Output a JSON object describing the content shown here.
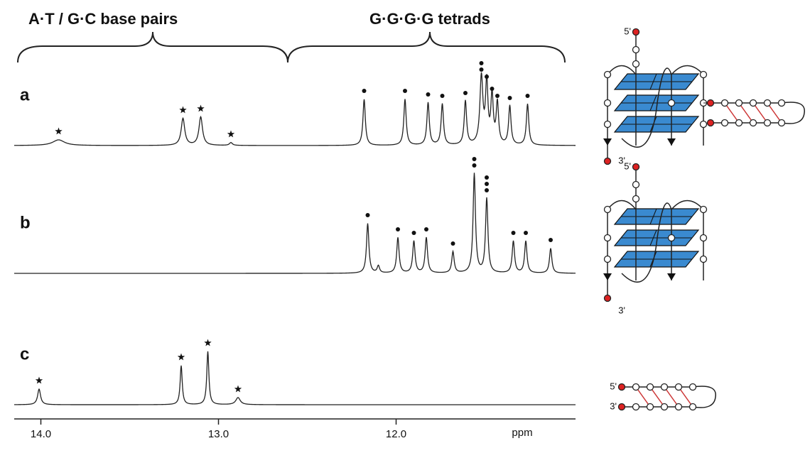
{
  "chart_data": {
    "type": "nmr",
    "headers": [
      "A·T / G·C  base pairs",
      "G·G·G·G  tetrads"
    ],
    "xlabel": "ppm",
    "xlim": [
      14.15,
      10.99
    ],
    "xticks": [
      {
        "value": 14,
        "label": "14.0"
      },
      {
        "value": 13,
        "label": "13.0"
      },
      {
        "value": 12,
        "label": "12.0"
      }
    ],
    "spectra": [
      {
        "name": "a",
        "positions": [
          13.9,
          13.2,
          13.1,
          12.93,
          12.18,
          11.95,
          11.82,
          11.74,
          11.61,
          11.52,
          11.49,
          11.46,
          11.43,
          11.36,
          11.26
        ],
        "heights": [
          8,
          38,
          40,
          4,
          65,
          65,
          60,
          58,
          62,
          95,
          85,
          68,
          58,
          55,
          58
        ],
        "widths": [
          0.04,
          0.012,
          0.012,
          0.01,
          0.008,
          0.008,
          0.008,
          0.008,
          0.008,
          0.01,
          0.008,
          0.008,
          0.008,
          0.008,
          0.008
        ],
        "markers": [
          [
            "star"
          ],
          [
            "star"
          ],
          [
            "star"
          ],
          [
            "star"
          ],
          [
            "dot"
          ],
          [
            "dot"
          ],
          [
            "dot"
          ],
          [
            "dot"
          ],
          [
            "dot"
          ],
          [
            "dot",
            "dot"
          ],
          [
            "dot"
          ],
          [
            "dot"
          ],
          [
            "dot"
          ],
          [
            "dot"
          ],
          [
            "dot"
          ]
        ]
      },
      {
        "name": "b",
        "positions": [
          12.16,
          12.1,
          11.99,
          11.9,
          11.83,
          11.68,
          11.56,
          11.49,
          11.34,
          11.27,
          11.13
        ],
        "heights": [
          70,
          10,
          50,
          45,
          50,
          30,
          140,
          105,
          45,
          45,
          35
        ],
        "widths": [
          0.008,
          0.008,
          0.008,
          0.008,
          0.008,
          0.008,
          0.008,
          0.008,
          0.008,
          0.008,
          0.008
        ],
        "markers": [
          [
            "dot"
          ],
          [],
          [
            "dot"
          ],
          [
            "dot"
          ],
          [
            "dot"
          ],
          [
            "dot"
          ],
          [
            "dot",
            "dot"
          ],
          [
            "dot",
            "dot",
            "dot"
          ],
          [
            "dot"
          ],
          [
            "dot"
          ],
          [
            "dot"
          ]
        ]
      },
      {
        "name": "c",
        "positions": [
          14.01,
          13.21,
          13.06,
          12.89
        ],
        "heights": [
          22,
          55,
          75,
          10
        ],
        "widths": [
          0.01,
          0.007,
          0.007,
          0.015
        ],
        "markers": [
          [
            "star"
          ],
          [
            "star"
          ],
          [
            "star"
          ],
          [
            "star"
          ]
        ]
      }
    ]
  },
  "schematics": [
    {
      "five": "5'",
      "three": "3'"
    },
    {
      "five": "5'",
      "three": "3'"
    },
    {
      "five": "5'",
      "three": "3'"
    }
  ]
}
